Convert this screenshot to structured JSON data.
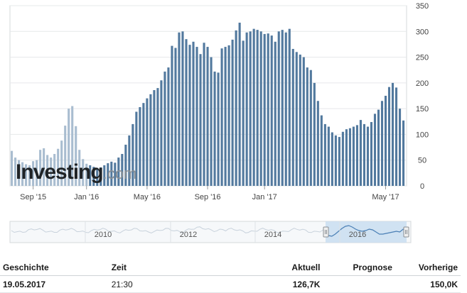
{
  "chart_data": {
    "type": "bar",
    "x_tick_labels": [
      "Sep '15",
      "Jan '16",
      "May '16",
      "Sep '16",
      "Jan '17",
      "May '17"
    ],
    "y_tick_labels": [
      "0",
      "50",
      "100",
      "150",
      "200",
      "250",
      "300",
      "350"
    ],
    "ylim": [
      0,
      350
    ],
    "y_axis_position": "right",
    "grid": true,
    "series": [
      {
        "values": [
          68,
          55,
          50,
          46,
          42,
          40,
          48,
          50,
          70,
          73,
          60,
          55,
          62,
          72,
          88,
          117,
          150,
          155,
          116,
          70,
          52,
          43,
          40,
          37,
          35,
          36,
          40,
          44,
          47,
          45,
          55,
          62,
          80,
          98,
          120,
          144,
          153,
          161,
          170,
          178,
          186,
          190,
          205,
          222,
          230,
          272,
          268,
          298,
          300,
          285,
          274,
          280,
          270,
          256,
          278,
          270,
          250,
          222,
          220,
          267,
          270,
          273,
          284,
          302,
          317,
          282,
          298,
          300,
          305,
          303,
          300,
          295,
          296,
          292,
          280,
          300,
          303,
          298,
          305,
          266,
          260,
          255,
          250,
          230,
          225,
          200,
          165,
          137,
          120,
          115,
          104,
          98,
          95,
          105,
          110,
          112,
          115,
          118,
          128,
          120,
          115,
          124,
          140,
          148,
          165,
          175,
          192,
          200,
          191,
          150,
          127
        ]
      }
    ],
    "highlighted_region": "last 2 years of history (lighter bars before Nov '15 are pre-window history)"
  },
  "overview": {
    "x_tick_labels": [
      "2010",
      "2012",
      "2014",
      "2016"
    ]
  },
  "watermark": {
    "main": "Investing",
    "tail": ".com"
  },
  "history_table": {
    "headers": [
      "Geschichte",
      "Zeit",
      "Aktuell",
      "Prognose",
      "Vorherige"
    ],
    "rows": [
      [
        "19.05.2017",
        "21:30",
        "126,7K",
        "",
        "150,0K"
      ]
    ]
  },
  "colors": {
    "bar": "#52799e",
    "bar_faded": "#a9bdd0",
    "grid": "#e6e8ea",
    "overview_fill": "#c9def0",
    "overview_line": "#4a7fb5"
  }
}
